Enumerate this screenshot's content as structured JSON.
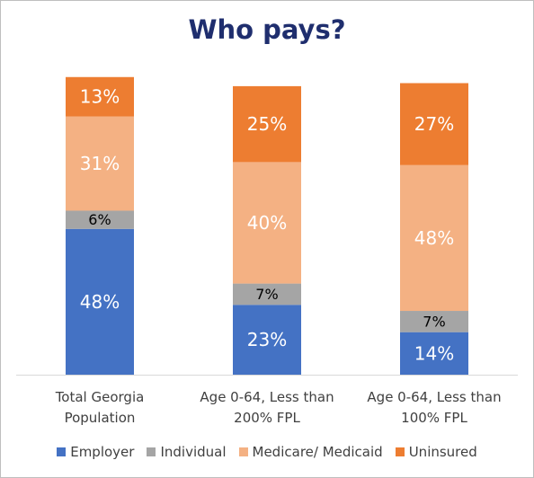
{
  "chart_data": {
    "type": "bar",
    "stacked": true,
    "normalized": true,
    "title": "Who pays?",
    "categories": [
      [
        "Total Georgia",
        "Population"
      ],
      [
        "Age 0-64, Less than",
        "200% FPL"
      ],
      [
        "Age 0-64, Less than",
        "100% FPL"
      ]
    ],
    "series": [
      {
        "name": "Employer",
        "color": "#4472c4",
        "label_color": "#ffffff",
        "values": [
          48,
          23,
          14
        ],
        "labels": [
          "48%",
          "23%",
          "14%"
        ]
      },
      {
        "name": "Individual",
        "color": "#a5a5a5",
        "label_color": "#000000",
        "values": [
          6,
          7,
          7
        ],
        "labels": [
          "6%",
          "7%",
          "7%"
        ]
      },
      {
        "name": "Medicare/ Medicaid",
        "color": "#f4b183",
        "label_color": "#ffffff",
        "values": [
          31,
          40,
          48
        ],
        "labels": [
          "31%",
          "40%",
          "48%"
        ]
      },
      {
        "name": "Uninsured",
        "color": "#ed7d31",
        "label_color": "#ffffff",
        "values": [
          13,
          25,
          27
        ],
        "labels": [
          "13%",
          "25%",
          "27%"
        ]
      }
    ],
    "legend_position": "bottom",
    "grid": false,
    "y_axis_visible": false
  }
}
